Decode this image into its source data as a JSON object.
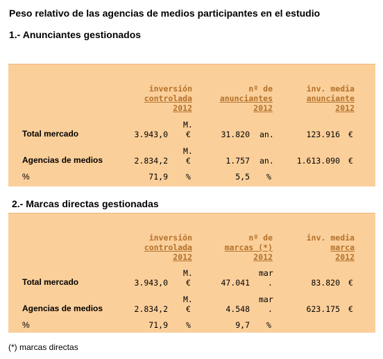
{
  "page_title": "Peso relativo de las agencias de medios participantes en el estudio",
  "section1": {
    "title": "1.- Anunciantes gestionados",
    "headers": {
      "col1": [
        "inversión",
        "controlada",
        "2012"
      ],
      "col2": [
        "nº de",
        "anunciantes",
        "2012"
      ],
      "col3": [
        "inv. media",
        "anunciante",
        "2012"
      ]
    },
    "rows": [
      {
        "label": "Total mercado",
        "v1": "3.943,0",
        "u1a": "M.",
        "u1b": "€",
        "v2": "31.820",
        "u2": "an.",
        "v3": "123.916",
        "u3": "€"
      },
      {
        "label": "Agencias de medios",
        "v1": "2.834,2",
        "u1a": "M.",
        "u1b": "€",
        "v2": "1.757",
        "u2": "an.",
        "v3": "1.613.090",
        "u3": "€"
      },
      {
        "label": "%",
        "v1": "71,9",
        "u1": "%",
        "v2": "5,5",
        "u2": "%"
      }
    ]
  },
  "section2": {
    "title": "2.- Marcas directas gestionadas",
    "headers": {
      "col1": [
        "inversión",
        "controlada",
        "2012"
      ],
      "col2": [
        "nº de",
        "marcas (*)",
        "2012"
      ],
      "col3": [
        "inv. media",
        "marca",
        "2012"
      ]
    },
    "rows": [
      {
        "label": "Total mercado",
        "v1": "3.943,0",
        "u1a": "M.",
        "u1b": "€",
        "v2": "47.041",
        "u2a": "mar",
        "u2b": ".",
        "v3": "83.820",
        "u3": "€"
      },
      {
        "label": "Agencias de medios",
        "v1": "2.834,2",
        "u1a": "M.",
        "u1b": "€",
        "v2": "4.548",
        "u2a": "mar",
        "u2b": ".",
        "v3": "623.175",
        "u3": "€"
      },
      {
        "label": "%",
        "v1": "71,9",
        "u1": "%",
        "v2": "9,7",
        "u2": "%"
      }
    ]
  },
  "footnote": "(*) marcas directas"
}
